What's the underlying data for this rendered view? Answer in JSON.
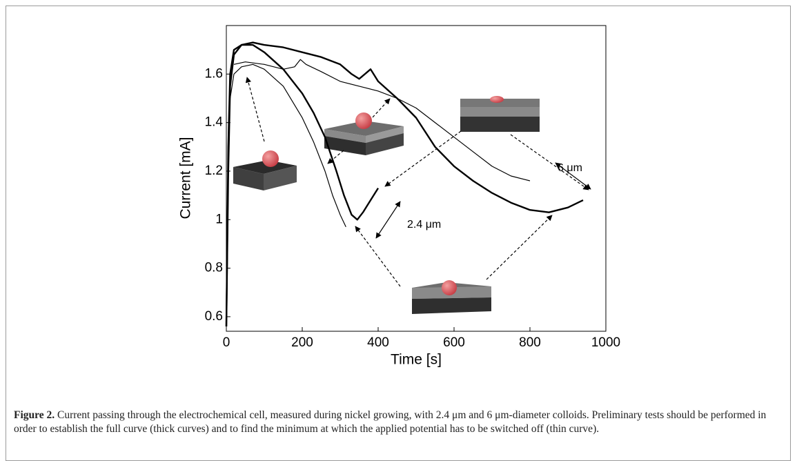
{
  "chart_data": {
    "type": "line",
    "xlabel": "Time [s]",
    "ylabel": "Current [mA]",
    "xlim": [
      0,
      1000
    ],
    "xticks": [
      0,
      200,
      400,
      600,
      800,
      1000
    ],
    "ylim": [
      0.54,
      1.8
    ],
    "yticks": [
      0.6,
      0.8,
      1,
      1.2,
      1.4,
      1.6
    ],
    "grid": false,
    "series": [
      {
        "color": "#000000",
        "line_width": 2.4,
        "x": [
          0,
          5,
          10,
          20,
          40,
          70,
          100,
          150,
          200,
          250,
          300,
          330,
          350,
          365,
          380,
          400,
          450,
          500,
          550,
          600,
          650,
          700,
          750,
          800,
          850,
          900,
          940
        ],
        "values": [
          0.56,
          1.2,
          1.55,
          1.68,
          1.72,
          1.73,
          1.72,
          1.71,
          1.69,
          1.67,
          1.64,
          1.6,
          1.58,
          1.6,
          1.62,
          1.57,
          1.5,
          1.42,
          1.3,
          1.22,
          1.16,
          1.11,
          1.07,
          1.04,
          1.03,
          1.05,
          1.08
        ]
      },
      {
        "color": "#000000",
        "line_width": 2.4,
        "x": [
          0,
          5,
          10,
          20,
          40,
          70,
          100,
          150,
          200,
          230,
          260,
          290,
          310,
          330,
          345,
          360,
          380,
          400
        ],
        "values": [
          0.56,
          1.3,
          1.6,
          1.7,
          1.72,
          1.72,
          1.69,
          1.62,
          1.52,
          1.44,
          1.34,
          1.2,
          1.1,
          1.02,
          1.0,
          1.03,
          1.08,
          1.13
        ]
      },
      {
        "color": "#000000",
        "line_width": 1.2,
        "x": [
          0,
          5,
          10,
          20,
          40,
          70,
          100,
          150,
          200,
          230,
          260,
          280,
          300,
          315
        ],
        "values": [
          0.56,
          1.25,
          1.5,
          1.6,
          1.63,
          1.64,
          1.62,
          1.55,
          1.42,
          1.32,
          1.2,
          1.1,
          1.02,
          0.97
        ]
      },
      {
        "color": "#000000",
        "line_width": 1.2,
        "x": [
          20,
          50,
          100,
          150,
          180,
          195,
          210,
          250,
          300,
          350,
          400,
          450,
          500,
          550,
          600,
          650,
          700,
          750,
          800
        ],
        "values": [
          1.64,
          1.65,
          1.64,
          1.62,
          1.63,
          1.66,
          1.64,
          1.61,
          1.57,
          1.55,
          1.53,
          1.5,
          1.46,
          1.4,
          1.34,
          1.28,
          1.22,
          1.18,
          1.16
        ]
      }
    ],
    "annotations": [
      "2.4 μm",
      "6 μm"
    ]
  },
  "caption": {
    "label": "Figure 2.",
    "text": " Current passing through the electrochemical cell, measured during nickel growing, with 2.4 μm and 6 μm-diameter colloids. Preliminary tests should be performed in order to establish the full curve (thick curves) and to find the minimum at which the applied potential has to be switched off (thin curve)."
  }
}
